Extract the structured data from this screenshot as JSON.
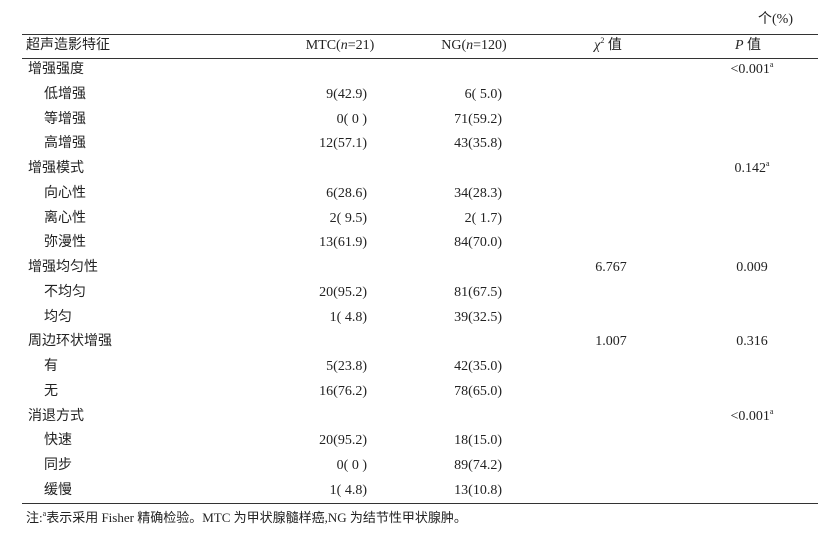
{
  "unit": "个(%)",
  "header": [
    [
      {
        "text": "超声造影特征"
      }
    ],
    [
      {
        "text": "MTC("
      },
      {
        "text": "n",
        "style": "italic"
      },
      {
        "text": "=21)"
      }
    ],
    [
      {
        "text": "NG("
      },
      {
        "text": "n",
        "style": "italic"
      },
      {
        "text": "=120)"
      }
    ],
    [
      {
        "text": "χ",
        "style": "italic"
      },
      {
        "text": "2",
        "style": "sup"
      },
      {
        "text": " 值"
      }
    ],
    [
      {
        "text": "P",
        "style": "italic"
      },
      {
        "text": " 值"
      }
    ]
  ],
  "groups": [
    {
      "label": "增强强度",
      "p": "<0.001",
      "p_sup": "a",
      "items": [
        {
          "label": "低增强",
          "mtc": "9(42.9)",
          "ng": "6( 5.0)"
        },
        {
          "label": "等增强",
          "mtc": "0( 0 )",
          "ng": "71(59.2)"
        },
        {
          "label": "高增强",
          "mtc": "12(57.1)",
          "ng": "43(35.8)"
        }
      ]
    },
    {
      "label": "增强模式",
      "p": "0.142",
      "p_sup": "a",
      "items": [
        {
          "label": "向心性",
          "mtc": "6(28.6)",
          "ng": "34(28.3)"
        },
        {
          "label": "离心性",
          "mtc": "2( 9.5)",
          "ng": "2( 1.7)"
        },
        {
          "label": "弥漫性",
          "mtc": "13(61.9)",
          "ng": "84(70.0)"
        }
      ]
    },
    {
      "label": "增强均匀性",
      "chi2": "6.767",
      "p": "0.009",
      "items": [
        {
          "label": "不均匀",
          "mtc": "20(95.2)",
          "ng": "81(67.5)"
        },
        {
          "label": "均匀",
          "mtc": "1( 4.8)",
          "ng": "39(32.5)"
        }
      ]
    },
    {
      "label": "周边环状增强",
      "chi2": "1.007",
      "p": "0.316",
      "items": [
        {
          "label": "有",
          "mtc": "5(23.8)",
          "ng": "42(35.0)"
        },
        {
          "label": "无",
          "mtc": "16(76.2)",
          "ng": "78(65.0)"
        }
      ]
    },
    {
      "label": "消退方式",
      "p": "<0.001",
      "p_sup": "a",
      "items": [
        {
          "label": "快速",
          "mtc": "20(95.2)",
          "ng": "18(15.0)"
        },
        {
          "label": "同步",
          "mtc": "0( 0 )",
          "ng": "89(74.2)"
        },
        {
          "label": "缓慢",
          "mtc": "1( 4.8)",
          "ng": "13(10.8)"
        }
      ]
    }
  ],
  "note": {
    "prefix": "注:",
    "sup": "a",
    "text": "表示采用 Fisher 精确检验。MTC 为甲状腺髓样癌,NG 为结节性甲状腺肿。"
  }
}
